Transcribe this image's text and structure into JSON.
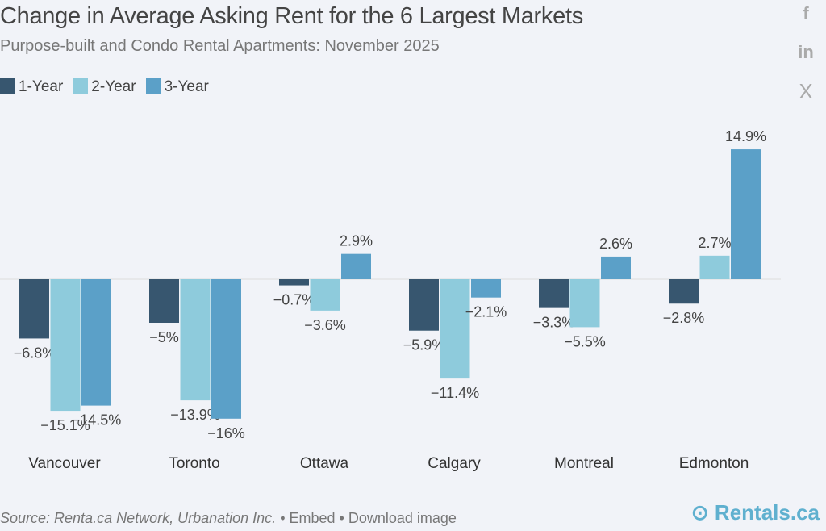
{
  "header": {
    "title": "Change in Average Asking Rent for the 6 Largest Markets",
    "subtitle": "Purpose-built and Condo Rental Apartments: November 2025"
  },
  "social": [
    {
      "icon": "facebook-icon",
      "label": "f"
    },
    {
      "icon": "linkedin-icon",
      "label": "in"
    },
    {
      "icon": "x-icon",
      "label": "X"
    }
  ],
  "footer": {
    "source": "Source: Renta.ca Network, Urbanation Inc.",
    "embed": "• Embed",
    "download": "• Download image",
    "logo": "Rentals.ca"
  },
  "chart_data": {
    "type": "bar",
    "title": "Change in Average Asking Rent for the 6 Largest Markets",
    "subtitle": "Purpose-built and Condo Rental Apartments: November 2025",
    "categories": [
      "Vancouver",
      "Toronto",
      "Ottawa",
      "Calgary",
      "Montreal",
      "Edmonton"
    ],
    "series": [
      {
        "name": "1-Year",
        "color": "#37566f",
        "values": [
          -6.8,
          -5,
          -0.7,
          -5.9,
          -3.3,
          -2.8
        ],
        "labels": [
          "−6.8%",
          "−5%",
          "−0.7%",
          "−5.9%",
          "−3.3%",
          "−2.8%"
        ]
      },
      {
        "name": "2-Year",
        "color": "#8ecbdc",
        "values": [
          -15.1,
          -13.9,
          -3.6,
          -11.4,
          -5.5,
          2.7
        ],
        "labels": [
          "−15.1%",
          "−13.9%",
          "−3.6%",
          "−11.4%",
          "−5.5%",
          "2.7%"
        ]
      },
      {
        "name": "3-Year",
        "color": "#5ba0c8",
        "values": [
          -14.5,
          -16,
          2.9,
          -2.1,
          2.6,
          14.9
        ],
        "labels": [
          "−14.5%",
          "−16%",
          "2.9%",
          "−2.1%",
          "2.6%",
          "14.9%"
        ]
      }
    ],
    "legend": "top-left",
    "grid": false
  }
}
